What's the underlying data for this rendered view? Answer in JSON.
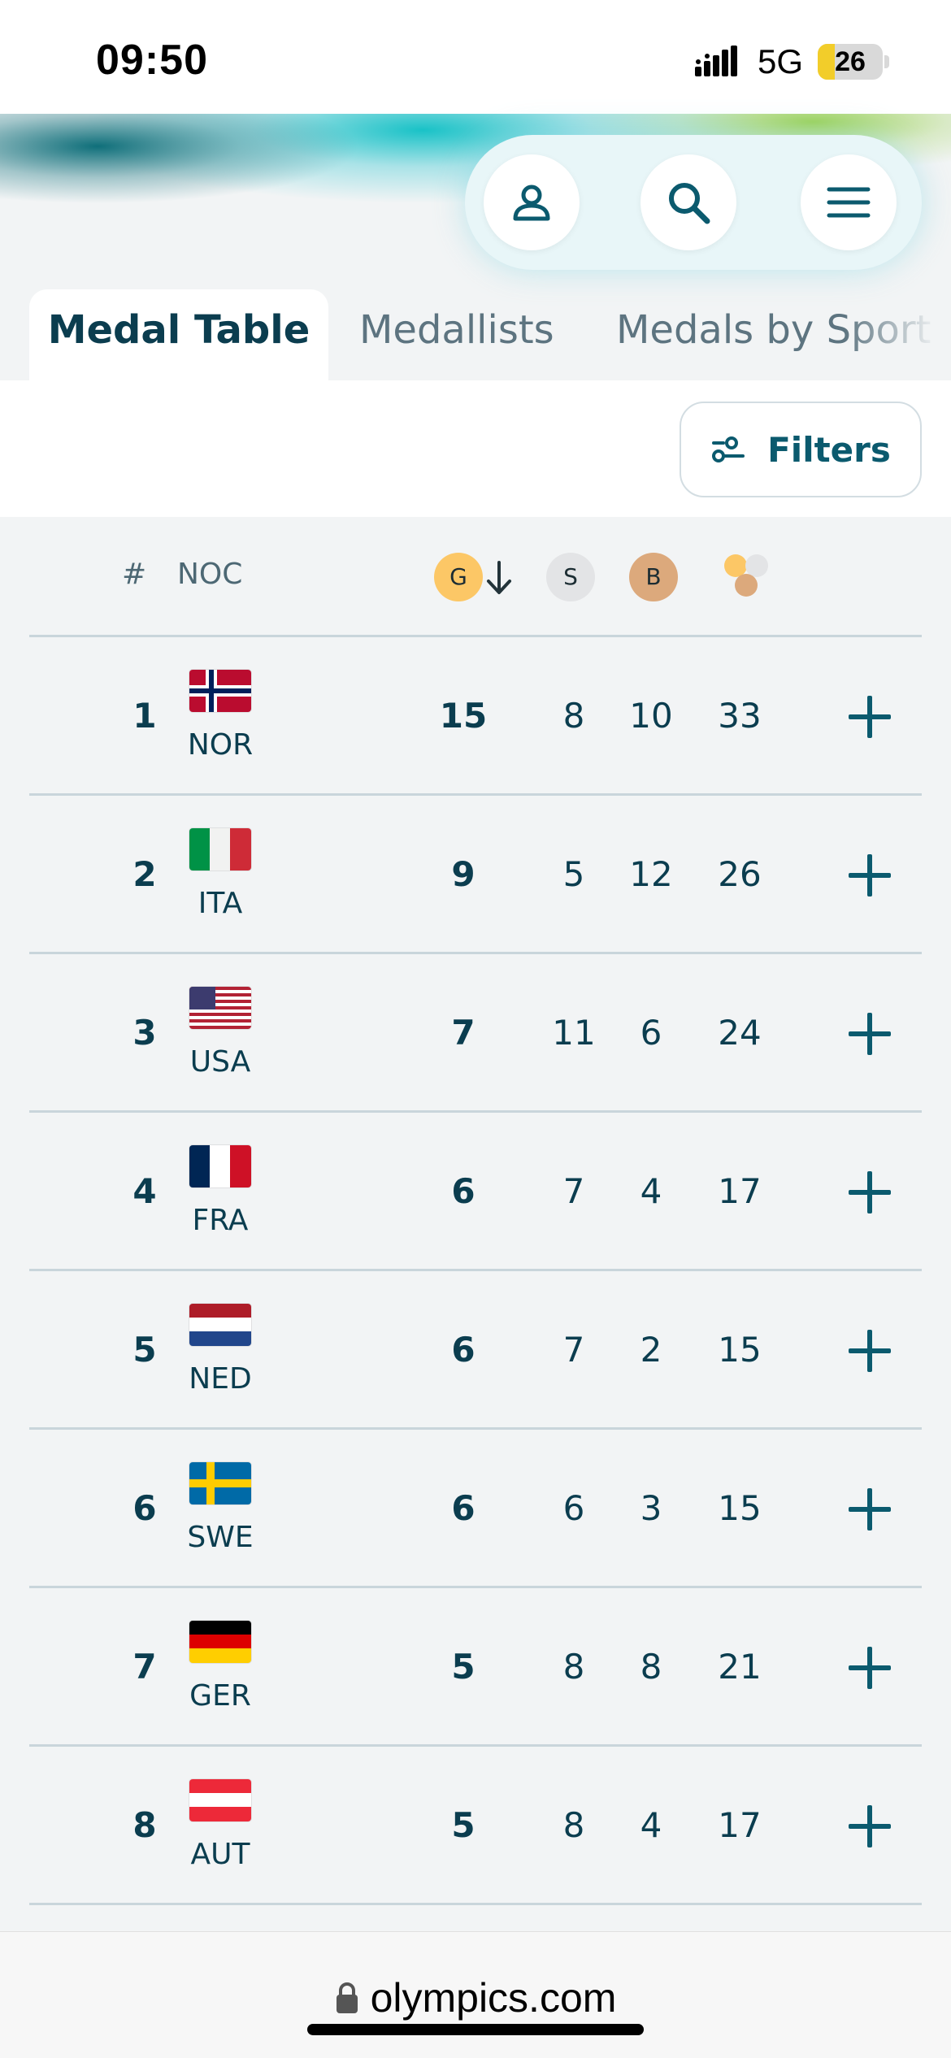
{
  "status_bar": {
    "time": "09:50",
    "network": "5G",
    "battery": "26",
    "battery_level": 0.26
  },
  "header": {
    "buttons": [
      {
        "name": "account-button",
        "icon": "user-icon"
      },
      {
        "name": "search-button",
        "icon": "search-icon"
      },
      {
        "name": "menu-button",
        "icon": "hamburger-menu-icon"
      }
    ]
  },
  "tabs": [
    {
      "label": "Medal Table",
      "active": true
    },
    {
      "label": "Medallists",
      "active": false
    },
    {
      "label": "Medals by Sport",
      "active": false
    }
  ],
  "filters": {
    "label": "Filters",
    "icon": "filter-sliders-icon"
  },
  "table": {
    "headers": {
      "rank": "#",
      "noc": "NOC",
      "gold": "G",
      "silver": "S",
      "bronze": "B",
      "total_icon": "medals-total-icon",
      "sort_icon": "sort-down-arrow-icon"
    },
    "colors": {
      "gold": "#fcc766",
      "silver": "#e3e4e6",
      "bronze": "#dca97c",
      "accent": "#0b5a6e"
    },
    "rows": [
      {
        "rank": "1",
        "noc": "NOR",
        "gold": "15",
        "silver": "8",
        "bronze": "10",
        "total": "33"
      },
      {
        "rank": "2",
        "noc": "ITA",
        "gold": "9",
        "silver": "5",
        "bronze": "12",
        "total": "26"
      },
      {
        "rank": "3",
        "noc": "USA",
        "gold": "7",
        "silver": "11",
        "bronze": "6",
        "total": "24"
      },
      {
        "rank": "4",
        "noc": "FRA",
        "gold": "6",
        "silver": "7",
        "bronze": "4",
        "total": "17"
      },
      {
        "rank": "5",
        "noc": "NED",
        "gold": "6",
        "silver": "7",
        "bronze": "2",
        "total": "15"
      },
      {
        "rank": "6",
        "noc": "SWE",
        "gold": "6",
        "silver": "6",
        "bronze": "3",
        "total": "15"
      },
      {
        "rank": "7",
        "noc": "GER",
        "gold": "5",
        "silver": "8",
        "bronze": "8",
        "total": "21"
      },
      {
        "rank": "8",
        "noc": "AUT",
        "gold": "5",
        "silver": "8",
        "bronze": "4",
        "total": "17"
      }
    ]
  },
  "browser": {
    "url": "olympics.com",
    "icon": "lock-icon"
  }
}
